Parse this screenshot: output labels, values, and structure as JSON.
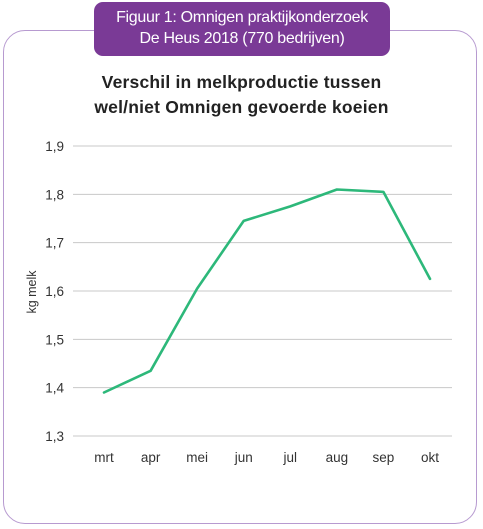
{
  "banner": {
    "line1": "Figuur 1: Omnigen praktijkonderzoek",
    "line2": "De Heus 2018 (770 bedrijven)"
  },
  "chart_data": {
    "type": "line",
    "title_lines": [
      "Verschil in melkproductie tussen",
      "wel/niet Omnigen gevoerde koeien"
    ],
    "xlabel": "",
    "ylabel": "kg melk",
    "categories": [
      "mrt",
      "apr",
      "mei",
      "jun",
      "jul",
      "aug",
      "sep",
      "okt"
    ],
    "series": [
      {
        "values": [
          1.39,
          1.435,
          1.605,
          1.745,
          1.775,
          1.81,
          1.805,
          1.625
        ]
      }
    ],
    "y_ticks": [
      "1,3",
      "1,4",
      "1,5",
      "1,6",
      "1,7",
      "1,8",
      "1,9"
    ],
    "ylim": [
      1.3,
      1.9
    ],
    "grid": true,
    "line_color": "#2db87a",
    "grid_color": "#c8c8c8"
  }
}
